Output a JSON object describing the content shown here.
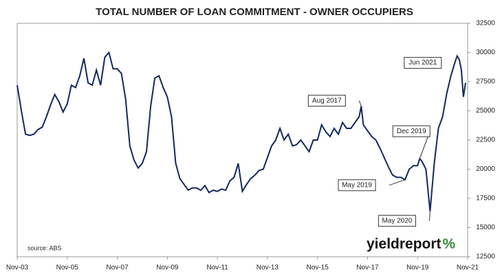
{
  "chart_data": {
    "type": "line",
    "title": "TOTAL NUMBER OF LOAN COMMITMENT - OWNER OCCUPIERS",
    "source": "source: ABS",
    "logo": "yieldreport",
    "logo_mark": "%",
    "color": "#12275e",
    "x": [
      "2003-11",
      "2004-01",
      "2004-03",
      "2004-05",
      "2004-07",
      "2004-09",
      "2004-11",
      "2005-01",
      "2005-03",
      "2005-05",
      "2005-07",
      "2005-09",
      "2005-11",
      "2006-01",
      "2006-03",
      "2006-05",
      "2006-07",
      "2006-09",
      "2006-11",
      "2007-01",
      "2007-03",
      "2007-05",
      "2007-07",
      "2007-09",
      "2007-11",
      "2008-01",
      "2008-03",
      "2008-05",
      "2008-07",
      "2008-09",
      "2008-11",
      "2009-01",
      "2009-03",
      "2009-05",
      "2009-07",
      "2009-09",
      "2009-11",
      "2010-01",
      "2010-03",
      "2010-05",
      "2010-07",
      "2010-09",
      "2010-11",
      "2011-01",
      "2011-03",
      "2011-05",
      "2011-07",
      "2011-09",
      "2011-11",
      "2012-01",
      "2012-03",
      "2012-05",
      "2012-07",
      "2012-09",
      "2012-11",
      "2013-01",
      "2013-03",
      "2013-05",
      "2013-07",
      "2013-09",
      "2013-11",
      "2014-01",
      "2014-03",
      "2014-05",
      "2014-07",
      "2014-09",
      "2014-11",
      "2015-01",
      "2015-03",
      "2015-05",
      "2015-07",
      "2015-09",
      "2015-11",
      "2016-01",
      "2016-03",
      "2016-05",
      "2016-07",
      "2016-09",
      "2016-11",
      "2017-01",
      "2017-03",
      "2017-05",
      "2017-07",
      "2017-08",
      "2017-09",
      "2017-11",
      "2018-01",
      "2018-03",
      "2018-05",
      "2018-07",
      "2018-09",
      "2018-11",
      "2019-01",
      "2019-03",
      "2019-05",
      "2019-07",
      "2019-09",
      "2019-11",
      "2019-12",
      "2020-01",
      "2020-03",
      "2020-05",
      "2020-07",
      "2020-09",
      "2020-11",
      "2021-01",
      "2021-03",
      "2021-05",
      "2021-06",
      "2021-07",
      "2021-08",
      "2021-09",
      "2021-10"
    ],
    "values": [
      27200,
      25000,
      23000,
      22900,
      23000,
      23400,
      23600,
      24500,
      25500,
      26400,
      25800,
      24900,
      25600,
      27200,
      27000,
      28000,
      29500,
      27400,
      27200,
      28500,
      27200,
      29600,
      30000,
      28600,
      28600,
      28200,
      26000,
      22000,
      20800,
      20100,
      20500,
      21500,
      25400,
      27800,
      28000,
      27000,
      26200,
      24500,
      20500,
      19200,
      18700,
      18200,
      18400,
      18400,
      18200,
      18600,
      18000,
      18200,
      18100,
      18300,
      18200,
      19000,
      19300,
      20500,
      18100,
      18700,
      19200,
      19500,
      19900,
      20000,
      21000,
      22000,
      22500,
      23500,
      22500,
      23000,
      22000,
      22100,
      22500,
      22000,
      21500,
      22500,
      22500,
      23800,
      23200,
      22800,
      23500,
      23000,
      24000,
      23500,
      23500,
      24000,
      24500,
      25400,
      23800,
      23300,
      22800,
      22500,
      21800,
      21000,
      20200,
      19500,
      19300,
      19300,
      19100,
      20000,
      20300,
      20300,
      20900,
      20700,
      20000,
      16400,
      20500,
      23500,
      24500,
      26500,
      28000,
      29200,
      29700,
      29400,
      28500,
      26200,
      27400
    ],
    "xlim": [
      "2003-11",
      "2021-11"
    ],
    "xticks": [
      {
        "value": "2003-11",
        "label": "Nov-03"
      },
      {
        "value": "2005-11",
        "label": "Nov-05"
      },
      {
        "value": "2007-11",
        "label": "Nov-07"
      },
      {
        "value": "2009-11",
        "label": "Nov-09"
      },
      {
        "value": "2011-11",
        "label": "Nov-11"
      },
      {
        "value": "2013-11",
        "label": "Nov-13"
      },
      {
        "value": "2015-11",
        "label": "Nov-15"
      },
      {
        "value": "2017-11",
        "label": "Nov-17"
      },
      {
        "value": "2019-11",
        "label": "Nov-19"
      },
      {
        "value": "2021-11",
        "label": "Nov-21"
      }
    ],
    "ylim": [
      12500,
      32500
    ],
    "yticks": [
      12500,
      15000,
      17500,
      20000,
      22500,
      25000,
      27500,
      30000,
      32500
    ],
    "annotations": [
      {
        "text": "Jun 2021",
        "x": "2021-06"
      },
      {
        "text": "Aug 2017",
        "x": "2017-08"
      },
      {
        "text": "Dec 2019",
        "x": "2019-12"
      },
      {
        "text": "May 2019",
        "x": "2019-05"
      },
      {
        "text": "May 2020",
        "x": "2020-05"
      }
    ]
  }
}
